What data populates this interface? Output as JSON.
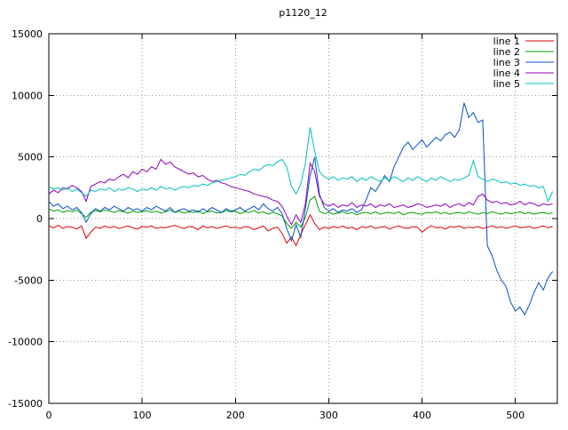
{
  "chart_data": {
    "type": "line",
    "title": "p1120_12",
    "xlabel": "",
    "ylabel": "",
    "xlim": [
      0,
      545
    ],
    "ylim": [
      -15000,
      15000
    ],
    "xticks": [
      0,
      100,
      200,
      300,
      400,
      500
    ],
    "yticks": [
      -15000,
      -10000,
      -5000,
      0,
      5000,
      10000,
      15000
    ],
    "grid": true,
    "grid_style": "dotted",
    "legend_position": "top-right-inside",
    "background_color": "#ffffff",
    "axis_color": "#000000",
    "grid_color": "#9a9a9a",
    "x_start": 0,
    "x_step": 5,
    "series": [
      {
        "name": "line 1",
        "color": "#e00000",
        "values": [
          -600,
          -750,
          -550,
          -800,
          -650,
          -700,
          -850,
          -600,
          -1600,
          -1100,
          -700,
          -800,
          -600,
          -750,
          -650,
          -800,
          -700,
          -600,
          -750,
          -850,
          -650,
          -700,
          -600,
          -800,
          -700,
          -750,
          -650,
          -550,
          -700,
          -800,
          -650,
          -700,
          -900,
          -600,
          -750,
          -650,
          -800,
          -700,
          -600,
          -750,
          -700,
          -800,
          -650,
          -700,
          -900,
          -750,
          -600,
          -1000,
          -800,
          -700,
          -1200,
          -2000,
          -1500,
          -2200,
          -1300,
          -500,
          300,
          -400,
          -900,
          -700,
          -800,
          -650,
          -750,
          -600,
          -800,
          -700,
          -900,
          -650,
          -750,
          -600,
          -800,
          -700,
          -650,
          -850,
          -700,
          -600,
          -750,
          -800,
          -650,
          -700,
          -1100,
          -800,
          -600,
          -750,
          -700,
          -850,
          -650,
          -700,
          -600,
          -800,
          -700,
          -750,
          -650,
          -800,
          -700,
          -600,
          -750,
          -650,
          -800,
          -700,
          -600,
          -750,
          -700,
          -650,
          -800,
          -700,
          -600,
          -750,
          -650
        ]
      },
      {
        "name": "line 2",
        "color": "#00a000",
        "values": [
          800,
          600,
          700,
          500,
          650,
          550,
          700,
          400,
          100,
          500,
          650,
          550,
          700,
          600,
          500,
          650,
          550,
          450,
          600,
          500,
          550,
          650,
          500,
          600,
          450,
          550,
          700,
          500,
          600,
          450,
          550,
          500,
          650,
          400,
          550,
          600,
          450,
          500,
          650,
          550,
          600,
          400,
          550,
          500,
          650,
          450,
          550,
          350,
          500,
          400,
          200,
          -400,
          -800,
          -300,
          -700,
          100,
          1500,
          1800,
          600,
          400,
          500,
          350,
          450,
          550,
          400,
          500,
          300,
          450,
          500,
          400,
          550,
          350,
          450,
          500,
          400,
          550,
          300,
          450,
          500,
          400,
          350,
          500,
          450,
          550,
          400,
          500,
          350,
          450,
          500,
          400,
          550,
          450,
          350,
          500,
          400,
          550,
          450,
          350,
          500,
          400,
          450,
          550,
          400,
          500,
          350,
          450,
          500,
          400,
          450
        ]
      },
      {
        "name": "line 3",
        "color": "#0050d0",
        "values": [
          1400,
          1000,
          1200,
          800,
          1000,
          700,
          900,
          500,
          -300,
          400,
          800,
          600,
          900,
          700,
          1000,
          800,
          600,
          900,
          700,
          800,
          600,
          900,
          700,
          1000,
          800,
          600,
          900,
          500,
          700,
          800,
          600,
          700,
          500,
          800,
          600,
          900,
          700,
          500,
          800,
          600,
          700,
          900,
          600,
          800,
          1000,
          700,
          1200,
          800,
          600,
          900,
          400,
          -800,
          -1800,
          -500,
          -1500,
          800,
          3500,
          5000,
          2000,
          900,
          600,
          800,
          500,
          700,
          600,
          800,
          500,
          700,
          1500,
          2500,
          2200,
          2800,
          3500,
          3000,
          4200,
          5000,
          5800,
          6200,
          5600,
          6000,
          6400,
          5800,
          6200,
          6600,
          6300,
          6800,
          7000,
          6600,
          7200,
          9400,
          8200,
          8600,
          7800,
          8000,
          -2200,
          -3000,
          -4200,
          -5000,
          -5500,
          -6800,
          -7500,
          -7200,
          -7800,
          -7000,
          -6000,
          -5200,
          -5800,
          -4800,
          -4300
        ]
      },
      {
        "name": "line 4",
        "color": "#9000c0",
        "values": [
          2000,
          2300,
          2100,
          2500,
          2400,
          2700,
          2500,
          2200,
          1400,
          2600,
          2800,
          3000,
          2900,
          3200,
          3100,
          3400,
          3600,
          3300,
          3800,
          3600,
          4000,
          3800,
          4200,
          4000,
          4800,
          4400,
          4600,
          4200,
          4000,
          3800,
          3600,
          3700,
          3400,
          3500,
          3200,
          3000,
          3100,
          2900,
          2800,
          2600,
          2500,
          2400,
          2300,
          2200,
          2000,
          1900,
          1800,
          1700,
          1500,
          1400,
          1000,
          200,
          -500,
          300,
          -300,
          1200,
          4500,
          3800,
          1800,
          1200,
          1000,
          1200,
          900,
          1100,
          1000,
          1300,
          900,
          1100,
          1000,
          1200,
          900,
          1100,
          1000,
          1200,
          900,
          1000,
          1100,
          900,
          1000,
          1200,
          1100,
          900,
          1000,
          1100,
          1000,
          1200,
          900,
          1100,
          1200,
          1000,
          1300,
          1100,
          1800,
          2000,
          1500,
          1300,
          1400,
          1200,
          1300,
          1100,
          1200,
          1400,
          1100,
          1300,
          1200,
          1000,
          1200,
          1100,
          1200
        ]
      },
      {
        "name": "line 5",
        "color": "#00c0c0",
        "values": [
          2600,
          2400,
          2500,
          2300,
          2500,
          2200,
          2400,
          2100,
          1800,
          2300,
          2200,
          2400,
          2300,
          2500,
          2200,
          2400,
          2300,
          2500,
          2400,
          2200,
          2400,
          2300,
          2500,
          2300,
          2600,
          2400,
          2500,
          2300,
          2500,
          2600,
          2500,
          2700,
          2600,
          2800,
          2700,
          2900,
          3000,
          3100,
          3200,
          3300,
          3400,
          3600,
          3500,
          3800,
          4000,
          3900,
          4200,
          4400,
          4300,
          4600,
          4800,
          4200,
          2600,
          2000,
          2800,
          4500,
          7400,
          5500,
          3800,
          3400,
          3200,
          3400,
          3100,
          3300,
          3200,
          3400,
          3000,
          3300,
          3100,
          3400,
          3200,
          3000,
          3300,
          3100,
          3400,
          3200,
          3000,
          3300,
          3100,
          3400,
          3200,
          3000,
          3300,
          3100,
          3400,
          3200,
          3000,
          3200,
          3100,
          3300,
          3500,
          4700,
          3400,
          3200,
          3000,
          3200,
          3100,
          2900,
          3000,
          2800,
          2900,
          2700,
          2800,
          2600,
          2700,
          2500,
          2600,
          1400,
          2200
        ]
      }
    ]
  }
}
